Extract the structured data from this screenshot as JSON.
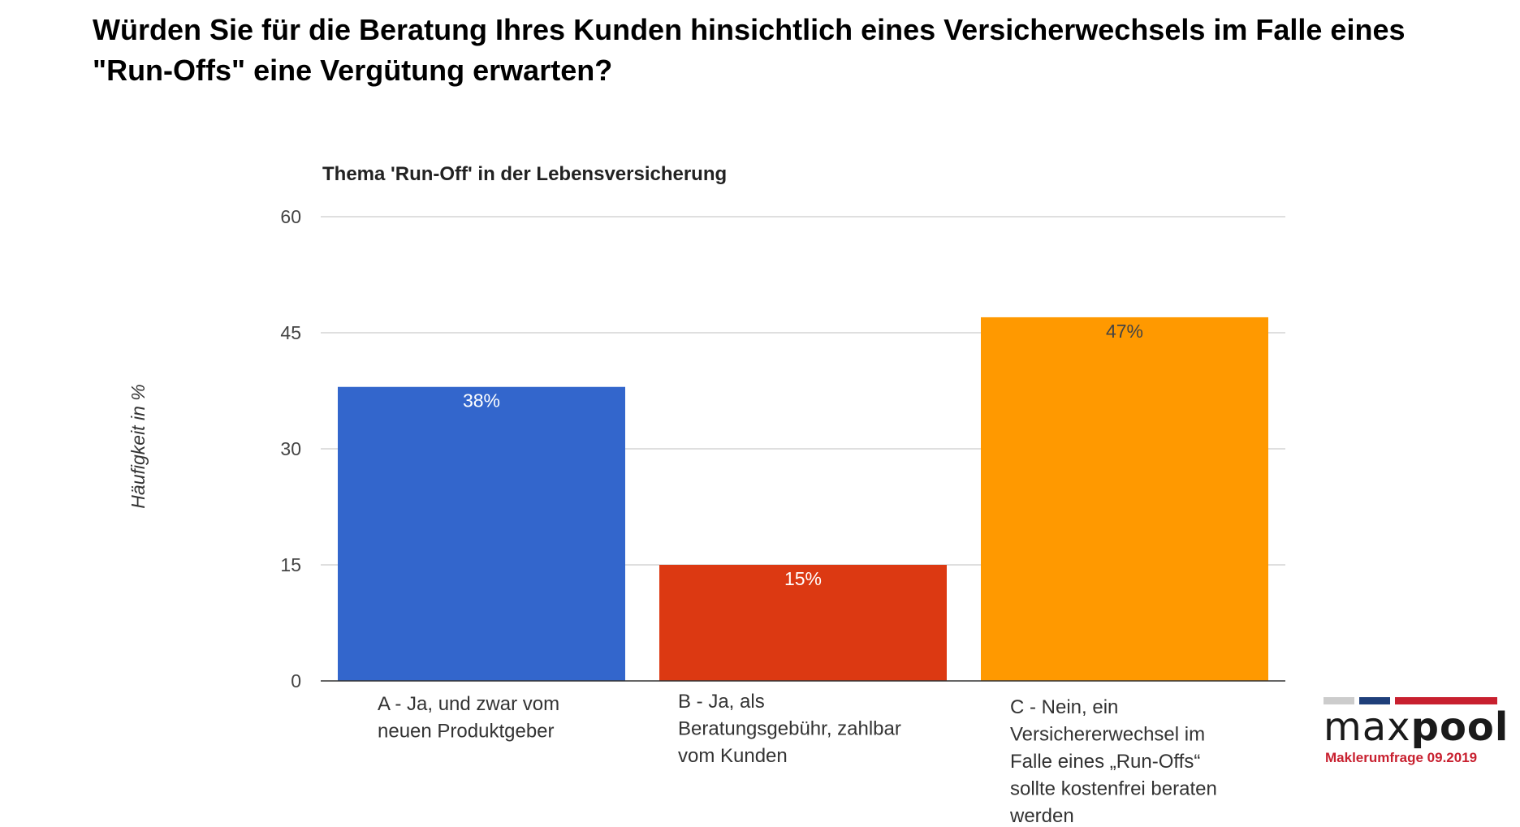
{
  "page": {
    "title_line1": "Würden Sie für die Beratung Ihres Kunden hinsichtlich eines Versicherwechsels im Falle eines",
    "title_line2": "\"Run-Offs\" eine Vergütung erwarten?"
  },
  "chart_data": {
    "type": "bar",
    "title": "Thema 'Run-Off' in der Lebensversicherung",
    "ylabel": "Häufigkeit in %",
    "xlabel": "",
    "ylim": [
      0,
      60
    ],
    "yticks": [
      0,
      15,
      30,
      45,
      60
    ],
    "grid": true,
    "categories": [
      [
        "A - Ja, und zwar vom",
        "neuen Produktgeber"
      ],
      [
        "B - Ja, als",
        "Beratungsgebühr, zahlbar",
        "vom Kunden"
      ],
      [
        "C - Nein, ein",
        "Versichererwechsel im",
        "Falle eines „Run-Offs“",
        "sollte kostenfrei beraten",
        "werden"
      ]
    ],
    "values": [
      38,
      15,
      47
    ],
    "data_labels": [
      "38%",
      "15%",
      "47%"
    ],
    "colors": [
      "#3366cc",
      "#dc3912",
      "#ff9900"
    ],
    "data_label_colors": [
      "#ffffff",
      "#ffffff",
      "#444444"
    ]
  },
  "logo": {
    "word_light": "max",
    "word_bold": "pool",
    "subtitle": "Maklerumfrage 09.2019",
    "stripe_colors": [
      "#cccccc",
      "#1f3f7a",
      "#c8202f"
    ]
  }
}
